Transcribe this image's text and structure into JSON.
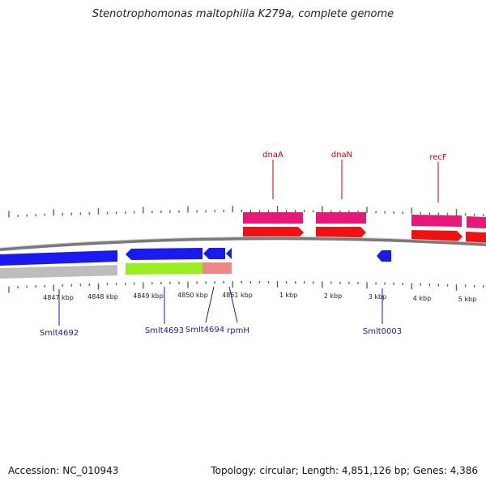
{
  "title": "Stenotrophomonas maltophilia K279a, complete genome",
  "accession_text": "Accession: NC_010943",
  "summary_text": "Topology: circular; Length: 4,851,126 bp; Genes: 4,386",
  "colors": {
    "tick": "#2e8b22",
    "backbone": "#808080",
    "forward_gene": "#ee1111",
    "forward_rna": "#e6197a",
    "reverse_gene": "#1a1aee",
    "reverse_rna_gray": "#bdbdbd",
    "reverse_rna_green": "#99ee22",
    "reverse_rna_pink": "#ee8888",
    "top_label": "#cc0000",
    "bottom_label": "#1a1aaa"
  },
  "scale_labels": [
    "4847 kbp",
    "4848 kbp",
    "4849 kbp",
    "4850 kbp",
    "4851 kbp",
    "1 kbp",
    "2 kbp",
    "3 kbp",
    "4 kbp",
    "5 kbp"
  ],
  "top_genes": [
    "dnaA",
    "dnaN",
    "recF"
  ],
  "bottom_genes": [
    "Smlt4692",
    "Smlt4693",
    "Smlt4694",
    "rpmH",
    "Smlt0003"
  ]
}
